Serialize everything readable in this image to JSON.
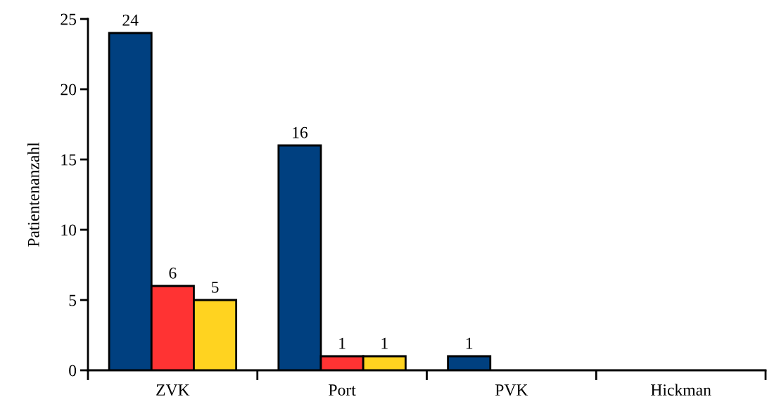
{
  "chart_data": {
    "type": "bar",
    "ylabel": "Patientenanzahl",
    "categories": [
      "ZVK",
      "Port",
      "PVK",
      "Hickman"
    ],
    "series": [
      {
        "color": "#004080",
        "values": [
          24,
          16,
          1,
          null
        ],
        "value_labels": [
          "24",
          "16",
          "1",
          null
        ]
      },
      {
        "color": "#ff3333",
        "values": [
          6,
          1,
          null,
          null
        ],
        "value_labels": [
          "6",
          "1",
          null,
          null
        ]
      },
      {
        "color": "#ffd320",
        "values": [
          5,
          1,
          null,
          null
        ],
        "value_labels": [
          "5",
          "1",
          null,
          null
        ]
      }
    ],
    "ylim": [
      0,
      25
    ],
    "yticks": [
      0,
      5,
      10,
      15,
      20,
      25
    ]
  }
}
